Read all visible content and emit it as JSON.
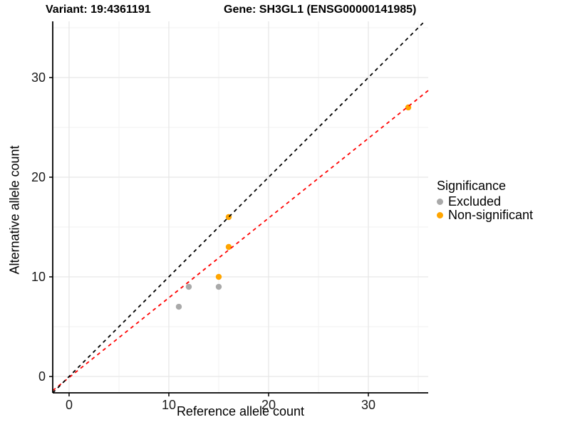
{
  "titles": {
    "left": "Variant: 19:4361191",
    "right": "Gene: SH3GL1 (ENSG00000141985)"
  },
  "chart_data": {
    "type": "scatter",
    "xlabel": "Reference allele count",
    "ylabel": "Alternative allele count",
    "xlim": [
      -1.64,
      36.0
    ],
    "ylim": [
      -1.64,
      35.64
    ],
    "x_ticks": [
      0,
      10,
      20,
      30
    ],
    "y_ticks": [
      0,
      10,
      20,
      30
    ],
    "x_minor_ticks": [
      5,
      15,
      25,
      35
    ],
    "y_minor_ticks": [
      5,
      15,
      25,
      35
    ],
    "grid": true,
    "series": [
      {
        "name": "Excluded",
        "color": "#A9A9A9",
        "points": [
          [
            11,
            7
          ],
          [
            12,
            9
          ],
          [
            15,
            9
          ]
        ]
      },
      {
        "name": "Non-significant",
        "color": "#FFA500",
        "points": [
          [
            15,
            10
          ],
          [
            16,
            13
          ],
          [
            16,
            16
          ],
          [
            34,
            27
          ]
        ]
      }
    ],
    "lines": [
      {
        "name": "fit-line",
        "color": "#FF0000",
        "dashed": true,
        "slope": 0.8,
        "intercept": -0.1
      },
      {
        "name": "identity-line",
        "color": "#000000",
        "dashed": true,
        "slope": 1,
        "intercept": 0
      }
    ],
    "legend": {
      "title": "Significance",
      "position": "right"
    },
    "colors": {
      "axis_line": "#000000",
      "tick_label": "#1a1a1a",
      "grid_major": "#E7E7E7",
      "grid_minor": "#F2F2F2"
    }
  }
}
